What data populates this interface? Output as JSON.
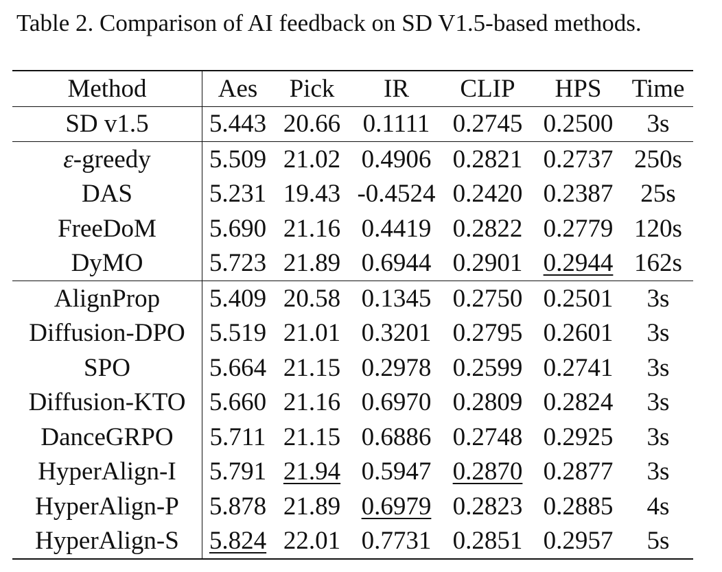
{
  "caption": "Table 2. Comparison of AI feedback on SD V1.5-based methods.",
  "columns": [
    "Method",
    "Aes",
    "Pick",
    "IR",
    "CLIP",
    "HPS",
    "Time"
  ],
  "groups": [
    [
      {
        "method": "SD v1.5",
        "aes": "5.443",
        "pick": "20.66",
        "ir": "0.1111",
        "clip": "0.2745",
        "hps": "0.2500",
        "time": "3s"
      }
    ],
    [
      {
        "method_symbol": "ε",
        "method": "-greedy",
        "aes": "5.509",
        "pick": "21.02",
        "ir": "0.4906",
        "clip": "0.2821",
        "hps": "0.2737",
        "time": "250s"
      },
      {
        "method": "DAS",
        "aes": "5.231",
        "pick": "19.43",
        "ir": "-0.4524",
        "clip": "0.2420",
        "hps": "0.2387",
        "time": "25s"
      },
      {
        "method": "FreeDoM",
        "aes": "5.690",
        "pick": "21.16",
        "ir": "0.4419",
        "clip": "0.2822",
        "hps": "0.2779",
        "time": "120s"
      },
      {
        "method": "DyMO",
        "aes": "5.723",
        "pick": "21.89",
        "ir": "0.6944",
        "clip": "0.2901",
        "hps": "0.2944",
        "time": "162s"
      }
    ],
    [
      {
        "method": "AlignProp",
        "aes": "5.409",
        "pick": "20.58",
        "ir": "0.1345",
        "clip": "0.2750",
        "hps": "0.2501",
        "time": "3s"
      },
      {
        "method": "Diffusion-DPO",
        "aes": "5.519",
        "pick": "21.01",
        "ir": "0.3201",
        "clip": "0.2795",
        "hps": "0.2601",
        "time": "3s"
      },
      {
        "method": "SPO",
        "aes": "5.664",
        "pick": "21.15",
        "ir": "0.2978",
        "clip": "0.2599",
        "hps": "0.2741",
        "time": "3s"
      },
      {
        "method": "Diffusion-KTO",
        "aes": "5.660",
        "pick": "21.16",
        "ir": "0.6970",
        "clip": "0.2809",
        "hps": "0.2824",
        "time": "3s"
      },
      {
        "method": "DanceGRPO",
        "aes": "5.711",
        "pick": "21.15",
        "ir": "0.6886",
        "clip": "0.2748",
        "hps": "0.2925",
        "time": "3s"
      },
      {
        "method": "HyperAlign-I",
        "aes": "5.791",
        "pick": "21.94",
        "ir": "0.5947",
        "clip": "0.2870",
        "hps": "0.2877",
        "time": "3s"
      },
      {
        "method": "HyperAlign-P",
        "aes": "5.878",
        "pick": "21.89",
        "ir": "0.6979",
        "clip": "0.2823",
        "hps": "0.2885",
        "time": "4s"
      },
      {
        "method": "HyperAlign-S",
        "aes": "5.824",
        "pick": "22.01",
        "ir": "0.7731",
        "clip": "0.2851",
        "hps": "0.2957",
        "time": "5s"
      }
    ]
  ]
}
